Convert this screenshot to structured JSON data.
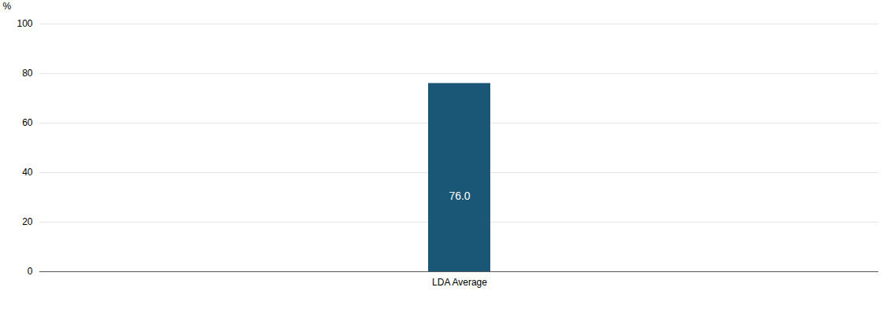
{
  "chart_data": {
    "type": "bar",
    "categories": [
      "LDA Average"
    ],
    "values": [
      76.0
    ],
    "value_labels": [
      "76.0"
    ],
    "color": "#1a5776",
    "ylabel": "%",
    "ylim": [
      0,
      100
    ],
    "yticks": [
      0,
      20,
      40,
      60,
      80,
      100
    ],
    "grid": true,
    "data_labels": true
  }
}
